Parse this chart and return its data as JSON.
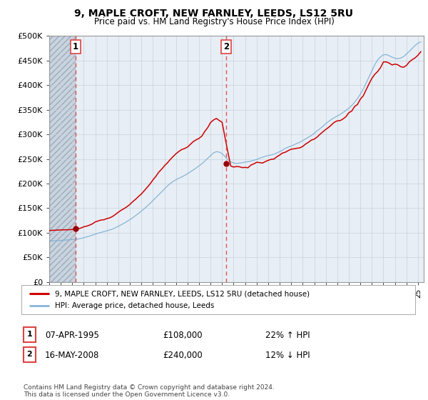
{
  "title": "9, MAPLE CROFT, NEW FARNLEY, LEEDS, LS12 5RU",
  "subtitle": "Price paid vs. HM Land Registry's House Price Index (HPI)",
  "ylabel_ticks": [
    "£0",
    "£50K",
    "£100K",
    "£150K",
    "£200K",
    "£250K",
    "£300K",
    "£350K",
    "£400K",
    "£450K",
    "£500K"
  ],
  "ytick_values": [
    0,
    50000,
    100000,
    150000,
    200000,
    250000,
    300000,
    350000,
    400000,
    450000,
    500000
  ],
  "ylim": [
    0,
    500000
  ],
  "xlim_start": 1993.0,
  "xlim_end": 2025.5,
  "background_color": "#ffffff",
  "plot_bg_color": "#e8eef5",
  "hatch_bg_color": "#d0d8e0",
  "grid_color": "#c8d0da",
  "sale1_x": 1995.27,
  "sale1_y": 108000,
  "sale1_label": "1",
  "sale1_date": "07-APR-1995",
  "sale1_price": "£108,000",
  "sale1_hpi": "22% ↑ HPI",
  "sale2_x": 2008.38,
  "sale2_y": 240000,
  "sale2_label": "2",
  "sale2_date": "16-MAY-2008",
  "sale2_price": "£240,000",
  "sale2_hpi": "12% ↓ HPI",
  "line1_color": "#cc0000",
  "line2_color": "#7bafd4",
  "marker_color": "#990000",
  "vline_color": "#dd4444",
  "legend_line1": "9, MAPLE CROFT, NEW FARNLEY, LEEDS, LS12 5RU (detached house)",
  "legend_line2": "HPI: Average price, detached house, Leeds",
  "footer": "Contains HM Land Registry data © Crown copyright and database right 2024.\nThis data is licensed under the Open Government Licence v3.0."
}
